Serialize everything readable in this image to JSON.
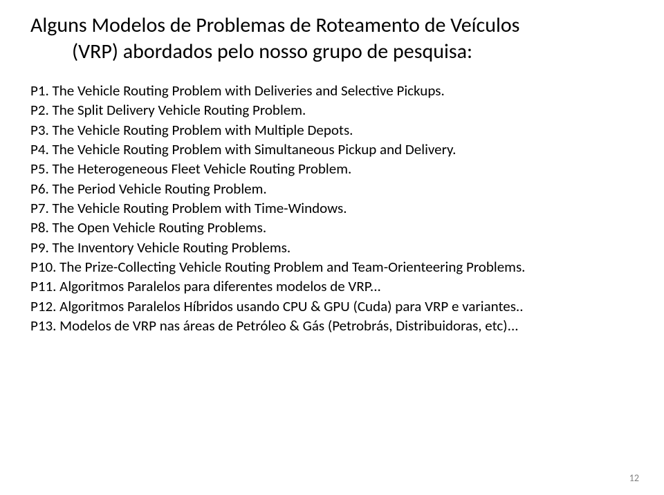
{
  "title": {
    "line1": "Alguns Modelos de Problemas de Roteamento de Veículos",
    "line2": "(VRP) abordados pelo nosso grupo de pesquisa:"
  },
  "items": [
    "P1. The Vehicle Routing Problem with Deliveries and Selective Pickups.",
    "P2. The Split Delivery Vehicle Routing Problem.",
    "P3. The Vehicle Routing Problem with Multiple Depots.",
    "P4. The Vehicle Routing Problem with Simultaneous Pickup and Delivery.",
    "P5. The Heterogeneous Fleet Vehicle Routing Problem.",
    "P6. The Period Vehicle Routing Problem.",
    "P7. The Vehicle Routing Problem with Time-Windows.",
    "P8. The Open Vehicle Routing Problems.",
    "P9. The Inventory Vehicle Routing Problems.",
    "P10. The Prize-Collecting Vehicle Routing Problem and Team-Orienteering Problems.",
    "P11. Algoritmos Paralelos para diferentes modelos de VRP...",
    "P12. Algoritmos Paralelos Híbridos usando CPU & GPU (Cuda) para VRP e variantes..",
    "P13. Modelos de VRP nas áreas de Petróleo & Gás (Petrobrás, Distribuidoras, etc)..."
  ],
  "page_number": "12",
  "colors": {
    "background": "#ffffff",
    "text": "#000000",
    "page_number": "#7f7f7f"
  },
  "typography": {
    "title_fontsize": 30,
    "body_fontsize": 21,
    "page_number_fontsize": 14,
    "font_family": "Calibri"
  }
}
